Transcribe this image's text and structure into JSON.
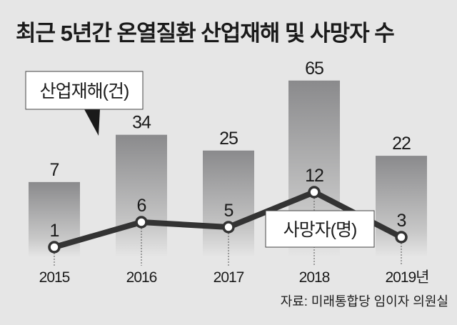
{
  "chart_data": {
    "type": "bar+line",
    "title": "최근 5년간 온열질환 산업재해 및 사망자 수",
    "categories": [
      "2015",
      "2016",
      "2017",
      "2018",
      "2019년"
    ],
    "series": [
      {
        "name": "산업재해(건)",
        "type": "bar",
        "values": [
          7,
          34,
          25,
          65,
          22
        ]
      },
      {
        "name": "사망자(명)",
        "type": "line",
        "values": [
          1,
          6,
          5,
          12,
          3
        ]
      }
    ],
    "source": "자료: 미래통합당 임이자 의원실",
    "grid": false,
    "colors": {
      "background": "#e6e6e6",
      "bar_top": "#8a8a8c",
      "line": "#333333",
      "text": "#1a1a1a"
    }
  }
}
